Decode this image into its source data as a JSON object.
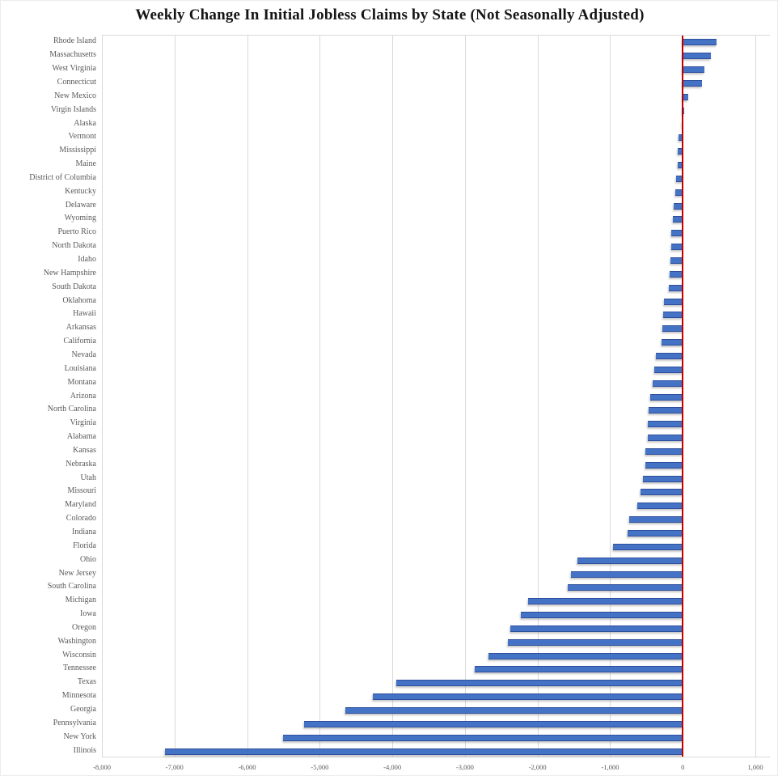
{
  "chart_data": {
    "type": "bar",
    "orientation": "horizontal",
    "title": "Weekly Change In Initial Jobless Claims by State (Not Seasonally Adjusted)",
    "categories": [
      "Rhode Island",
      "Massachusetts",
      "West Virginia",
      "Connecticut",
      "New Mexico",
      "Virgin Islands",
      "Alaska",
      "Vermont",
      "Mississippi",
      "Maine",
      "District of Columbia",
      "Kentucky",
      "Delaware",
      "Wyoming",
      "Puerto Rico",
      "North Dakota",
      "Idaho",
      "New Hampshire",
      "South Dakota",
      "Oklahoma",
      "Hawaii",
      "Arkansas",
      "California",
      "Nevada",
      "Louisiana",
      "Montana",
      "Arizona",
      "North Carolina",
      "Virginia",
      "Alabama",
      "Kansas",
      "Nebraska",
      "Utah",
      "Missouri",
      "Maryland",
      "Colorado",
      "Indiana",
      "Florida",
      "Ohio",
      "New Jersey",
      "South Carolina",
      "Michigan",
      "Iowa",
      "Oregon",
      "Washington",
      "Wisconsin",
      "Tennessee",
      "Texas",
      "Minnesota",
      "Georgia",
      "Pennsylvania",
      "New York",
      "Illinois"
    ],
    "values": [
      470,
      385,
      295,
      265,
      70,
      15,
      -15,
      -60,
      -65,
      -70,
      -90,
      -100,
      -130,
      -140,
      -155,
      -155,
      -170,
      -180,
      -190,
      -255,
      -270,
      -285,
      -290,
      -370,
      -390,
      -415,
      -450,
      -470,
      -480,
      -485,
      -515,
      -520,
      -545,
      -580,
      -630,
      -735,
      -755,
      -960,
      -1455,
      -1540,
      -1590,
      -2130,
      -2235,
      -2370,
      -2405,
      -2675,
      -2865,
      -3950,
      -4270,
      -4650,
      -5210,
      -5510,
      -7130
    ],
    "xlabel": "",
    "ylabel": "",
    "xlim": [
      -8000,
      1200
    ],
    "xticks": [
      -8000,
      -7000,
      -6000,
      -5000,
      -4000,
      -3000,
      -2000,
      -1000,
      0,
      1000
    ],
    "xtick_labels": [
      "-8,000",
      "-7,000",
      "-6,000",
      "-5,000",
      "-4,000",
      "-3,000",
      "-2,000",
      "-1,000",
      "0",
      "1,000"
    ],
    "grid": "vertical",
    "legend": "none",
    "bar_color": "#4472c4",
    "bar_edge_color": "#2e4f9e",
    "zero_line_color": "#c00000",
    "gridline_color": "#d9d9d9",
    "label_color": "#595959"
  }
}
